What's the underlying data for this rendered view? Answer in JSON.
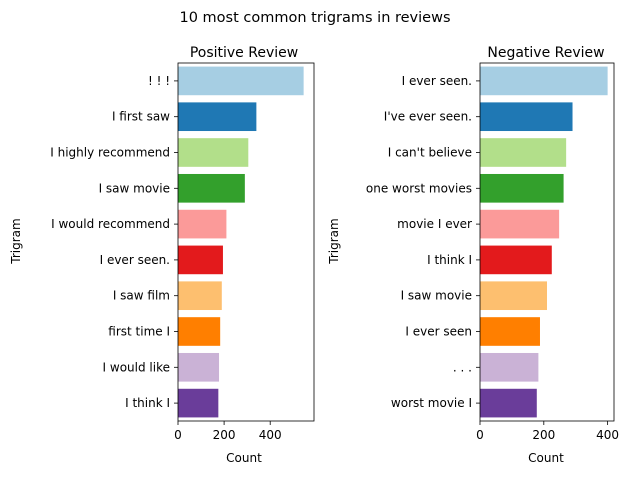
{
  "figure": {
    "suptitle": "10 most common trigrams in reviews"
  },
  "palette": [
    "#a6cee3",
    "#1f78b4",
    "#b2df8a",
    "#33a02c",
    "#fb9a99",
    "#e31a1c",
    "#fdbf6f",
    "#ff7f00",
    "#cab2d6",
    "#6a3d9a"
  ],
  "chart_data": [
    {
      "type": "bar",
      "orientation": "horizontal",
      "title": "Positive Review",
      "xlabel": "Count",
      "ylabel": "Trigram",
      "xlim": [
        0,
        590
      ],
      "xticks": [
        0,
        200,
        400
      ],
      "categories": [
        "! ! !",
        "I first saw",
        "I highly recommend",
        "I saw movie",
        "I would recommend",
        "I ever seen.",
        "I saw film",
        "first time I",
        "I would like",
        "I think I"
      ],
      "values": [
        545,
        340,
        305,
        290,
        210,
        195,
        190,
        183,
        178,
        175
      ]
    },
    {
      "type": "bar",
      "orientation": "horizontal",
      "title": "Negative Review",
      "xlabel": "Count",
      "ylabel": "Trigram",
      "xlim": [
        0,
        420
      ],
      "xticks": [
        0,
        200,
        400
      ],
      "categories": [
        "I ever seen.",
        "I've ever seen.",
        "I can't believe",
        "one worst movies",
        "movie I ever",
        "I think I",
        "I saw movie",
        "I ever seen",
        ". . .",
        "worst movie I"
      ],
      "values": [
        400,
        290,
        270,
        262,
        248,
        225,
        210,
        188,
        183,
        178
      ]
    }
  ]
}
